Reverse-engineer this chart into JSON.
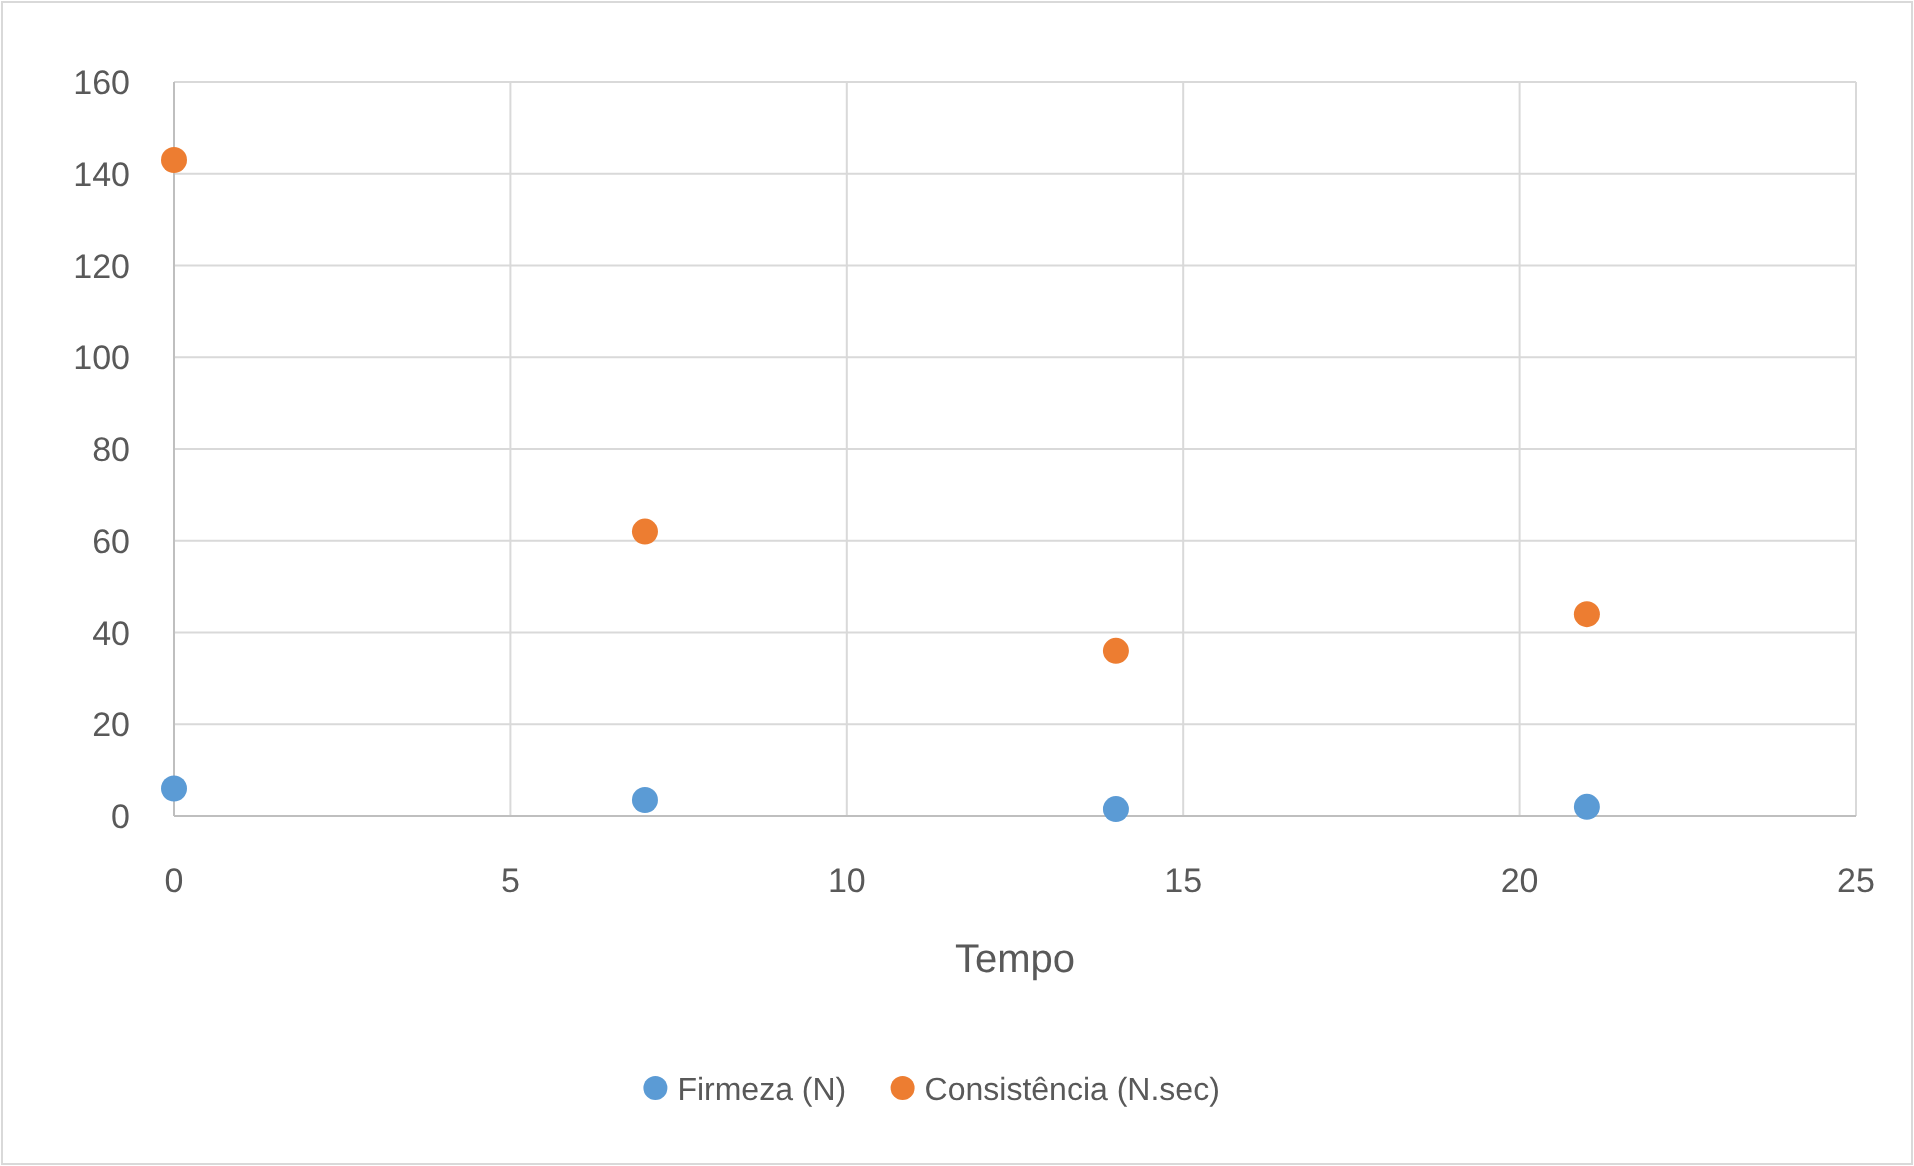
{
  "chart_data": {
    "type": "scatter",
    "xlabel": "Tempo",
    "x": [
      0,
      7,
      14,
      21
    ],
    "series": [
      {
        "name": "Firmeza (N)",
        "color": "#5b9bd5",
        "values": [
          6,
          3.5,
          1.5,
          2
        ]
      },
      {
        "name": "Consistência (N.sec)",
        "color": "#ed7d31",
        "values": [
          143,
          62,
          36,
          44
        ]
      }
    ],
    "xlim": [
      0,
      25
    ],
    "xticks": [
      0,
      5,
      10,
      15,
      20,
      25
    ],
    "ylim": [
      0,
      160
    ],
    "yticks": [
      0,
      20,
      40,
      60,
      80,
      100,
      120,
      140,
      160
    ],
    "grid": true,
    "legend": "bottom",
    "marker": "circle"
  }
}
